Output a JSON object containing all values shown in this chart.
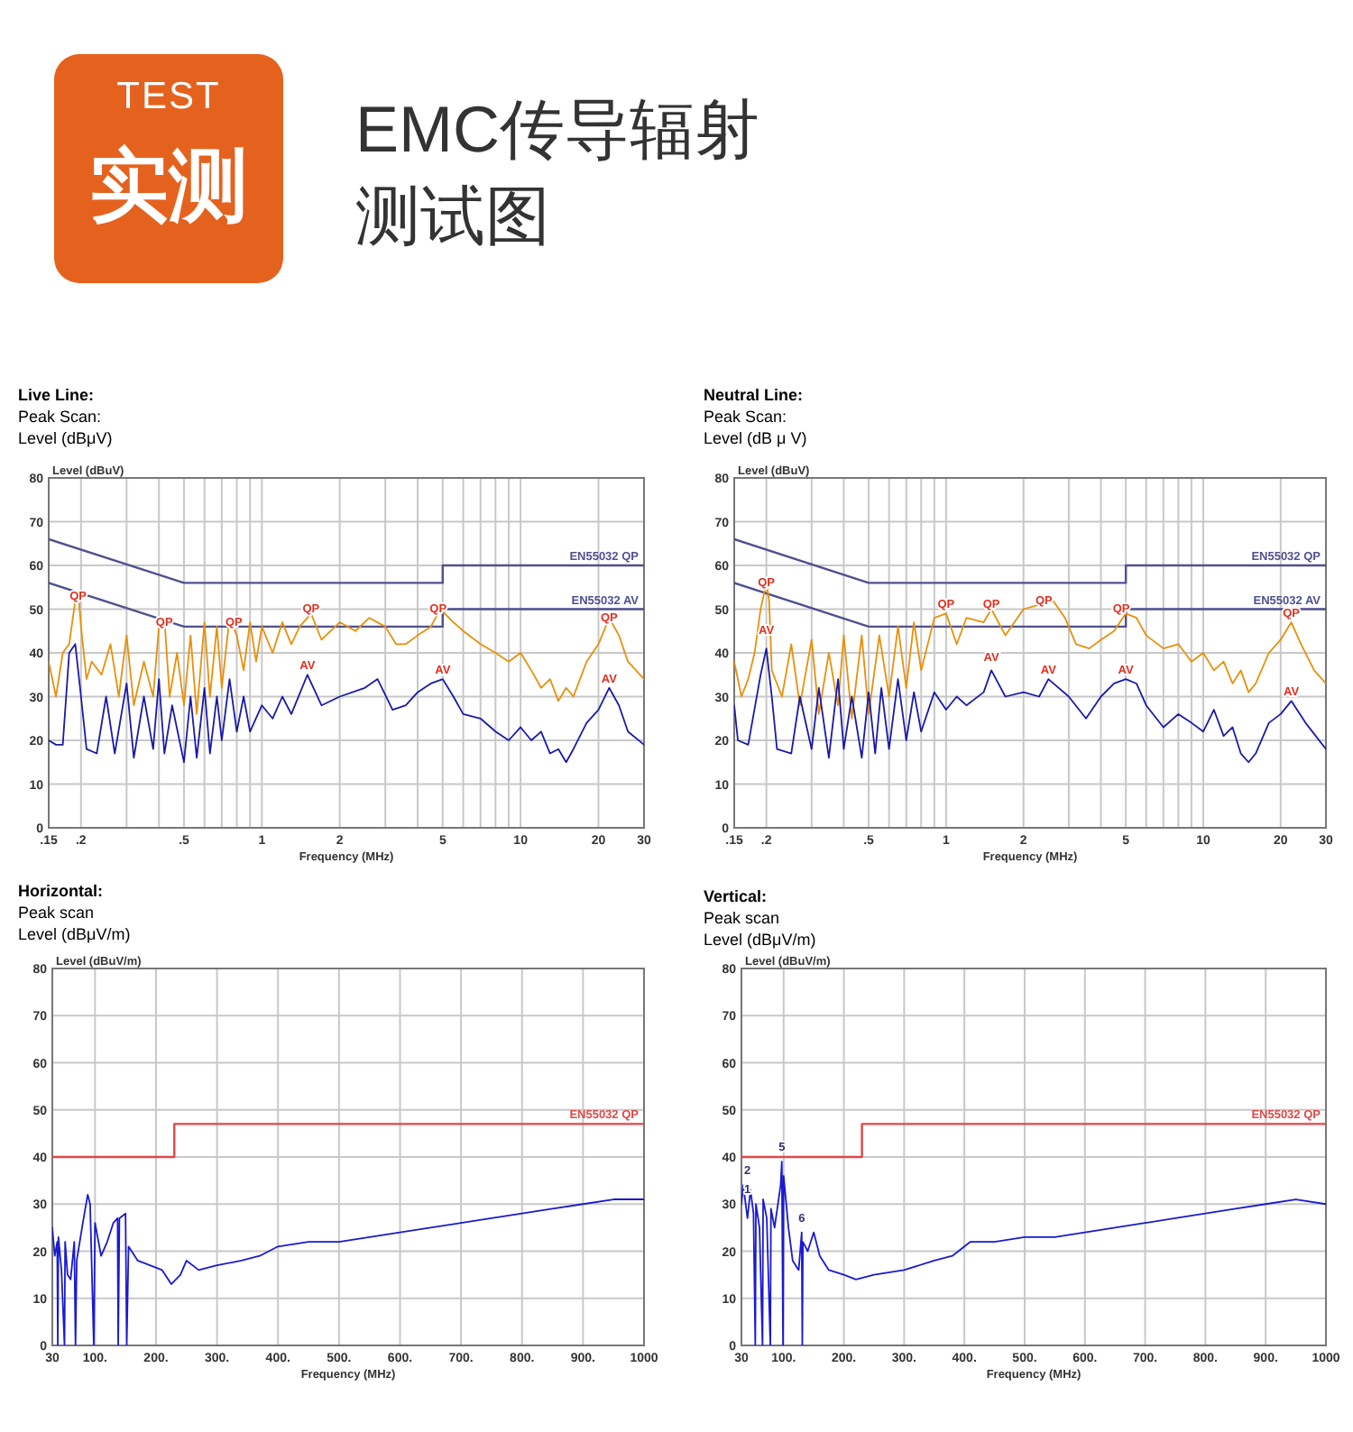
{
  "chart_data": [
    {
      "type": "other",
      "title": "EMC传导辐射测试图",
      "annotations": [
        "TEST",
        "实测"
      ]
    },
    {
      "type": "line",
      "title": "Live Line:",
      "subtitle": "Peak Scan:",
      "ylabel": "Level (dBuV)",
      "xlabel": "Frequency (MHz)",
      "log": "x",
      "grid": true,
      "xlim": [
        0.15,
        30
      ],
      "ylim": [
        0,
        80
      ],
      "xticks": [
        {
          "value": 0.15,
          "label": ".15"
        },
        {
          "value": 0.2,
          "label": ".2"
        },
        {
          "value": 0.3,
          "label": null
        },
        {
          "value": 0.4,
          "label": null
        },
        {
          "value": 0.5,
          "label": ".5"
        },
        {
          "value": 0.6,
          "label": null
        },
        {
          "value": 0.7,
          "label": null
        },
        {
          "value": 0.8,
          "label": null
        },
        {
          "value": 0.9,
          "label": null
        },
        1,
        2,
        {
          "value": 3,
          "label": null
        },
        {
          "value": 4,
          "label": null
        },
        5,
        {
          "value": 6,
          "label": null
        },
        {
          "value": 7,
          "label": null
        },
        {
          "value": 8,
          "label": null
        },
        {
          "value": 9,
          "label": null
        },
        10,
        20,
        30
      ],
      "yticks": [
        0,
        10,
        20,
        30,
        40,
        50,
        60,
        70,
        80
      ],
      "annotations": [
        "Level (dBμV)",
        {
          "text": "QP",
          "x": 0.195,
          "y": 51
        },
        {
          "text": "QP",
          "x": 0.42,
          "y": 45
        },
        {
          "text": "QP",
          "x": 0.78,
          "y": 45
        },
        {
          "text": "QP",
          "x": 1.55,
          "y": 48
        },
        {
          "text": "QP",
          "x": 4.8,
          "y": 48
        },
        {
          "text": "QP",
          "x": 22,
          "y": 46
        },
        {
          "text": "AV",
          "x": 1.5,
          "y": 35
        },
        {
          "text": "AV",
          "x": 5.0,
          "y": 34
        },
        {
          "text": "AV",
          "x": 22,
          "y": 32
        }
      ],
      "series": [
        {
          "type": "line",
          "name": "EN55032 QP",
          "color": "#505090",
          "x": [
            0.15,
            0.5,
            5,
            5,
            30
          ],
          "values": [
            66,
            56,
            56,
            60,
            60
          ]
        },
        {
          "type": "line",
          "name": "EN55032 AV",
          "color": "#505090",
          "x": [
            0.15,
            0.5,
            5,
            5,
            30
          ],
          "values": [
            56,
            46,
            46,
            50,
            50
          ]
        },
        {
          "type": "line",
          "color": "#e8900a",
          "x": [
            0.15,
            0.16,
            0.17,
            0.18,
            0.19,
            0.195,
            0.2,
            0.21,
            0.22,
            0.24,
            0.26,
            0.28,
            0.3,
            0.32,
            0.35,
            0.38,
            0.4,
            0.42,
            0.44,
            0.47,
            0.5,
            0.53,
            0.56,
            0.6,
            0.63,
            0.67,
            0.7,
            0.75,
            0.8,
            0.85,
            0.9,
            0.95,
            1.0,
            1.1,
            1.2,
            1.3,
            1.4,
            1.55,
            1.7,
            2.0,
            2.3,
            2.6,
            3.0,
            3.3,
            3.6,
            4.0,
            4.5,
            4.9,
            5.5,
            6,
            7,
            8,
            9,
            10,
            11,
            12,
            13,
            14,
            15,
            16,
            18,
            20,
            22,
            24,
            26,
            30
          ],
          "values": [
            38,
            30,
            40,
            42,
            52,
            54,
            46,
            34,
            38,
            35,
            42,
            30,
            44,
            28,
            38,
            30,
            46,
            48,
            30,
            40,
            28,
            44,
            26,
            47,
            30,
            46,
            32,
            48,
            44,
            36,
            47,
            38,
            46,
            40,
            47,
            42,
            46,
            49,
            43,
            47,
            45,
            48,
            46,
            42,
            42,
            44,
            46,
            50,
            47,
            45,
            42,
            40,
            38,
            40,
            36,
            32,
            34,
            29,
            32,
            30,
            38,
            42,
            48,
            44,
            38,
            34
          ]
        },
        {
          "type": "line",
          "color": "#1a1aa8",
          "x": [
            0.15,
            0.16,
            0.17,
            0.18,
            0.19,
            0.2,
            0.21,
            0.23,
            0.25,
            0.27,
            0.3,
            0.32,
            0.35,
            0.38,
            0.4,
            0.42,
            0.45,
            0.5,
            0.53,
            0.56,
            0.6,
            0.63,
            0.67,
            0.7,
            0.75,
            0.8,
            0.85,
            0.9,
            1.0,
            1.1,
            1.2,
            1.3,
            1.5,
            1.7,
            2.0,
            2.5,
            2.8,
            3.2,
            3.6,
            4.0,
            4.5,
            5.0,
            5.5,
            6,
            7,
            8,
            9,
            10,
            11,
            12,
            13,
            14,
            15,
            16,
            18,
            20,
            22,
            24,
            26,
            30
          ],
          "values": [
            20,
            19,
            19,
            40,
            42,
            30,
            18,
            17,
            30,
            17,
            33,
            16,
            30,
            18,
            34,
            17,
            28,
            15,
            30,
            16,
            32,
            17,
            30,
            20,
            34,
            22,
            30,
            22,
            28,
            25,
            30,
            26,
            35,
            28,
            30,
            32,
            34,
            27,
            28,
            31,
            33,
            34,
            30,
            26,
            25,
            22,
            20,
            23,
            20,
            22,
            17,
            18,
            15,
            18,
            24,
            27,
            32,
            28,
            22,
            19
          ]
        }
      ]
    },
    {
      "type": "line",
      "title": "Neutral Line:",
      "subtitle": "Peak Scan:",
      "ylabel": "Level (dBuV)",
      "xlabel": "Frequency (MHz)",
      "log": "x",
      "grid": true,
      "xlim": [
        0.15,
        30
      ],
      "ylim": [
        0,
        80
      ],
      "xticks": [
        {
          "value": 0.15,
          "label": ".15"
        },
        {
          "value": 0.2,
          "label": ".2"
        },
        {
          "value": 0.3,
          "label": null
        },
        {
          "value": 0.4,
          "label": null
        },
        {
          "value": 0.5,
          "label": ".5"
        },
        {
          "value": 0.6,
          "label": null
        },
        {
          "value": 0.7,
          "label": null
        },
        {
          "value": 0.8,
          "label": null
        },
        {
          "value": 0.9,
          "label": null
        },
        1,
        2,
        {
          "value": 3,
          "label": null
        },
        {
          "value": 4,
          "label": null
        },
        5,
        {
          "value": 6,
          "label": null
        },
        {
          "value": 7,
          "label": null
        },
        {
          "value": 8,
          "label": null
        },
        {
          "value": 9,
          "label": null
        },
        10,
        20,
        30
      ],
      "yticks": [
        0,
        10,
        20,
        30,
        40,
        50,
        60,
        70,
        80
      ],
      "annotations": [
        "Level (dB μ V)",
        {
          "text": "QP",
          "x": 0.2,
          "y": 54
        },
        {
          "text": "QP",
          "x": 1.0,
          "y": 49
        },
        {
          "text": "QP",
          "x": 1.5,
          "y": 49
        },
        {
          "text": "QP",
          "x": 2.4,
          "y": 50
        },
        {
          "text": "QP",
          "x": 4.8,
          "y": 48
        },
        {
          "text": "QP",
          "x": 22,
          "y": 47
        },
        {
          "text": "AV",
          "x": 0.2,
          "y": 43
        },
        {
          "text": "AV",
          "x": 1.5,
          "y": 37
        },
        {
          "text": "AV",
          "x": 2.5,
          "y": 34
        },
        {
          "text": "AV",
          "x": 5.0,
          "y": 34
        },
        {
          "text": "AV",
          "x": 22,
          "y": 29
        }
      ],
      "series": [
        {
          "type": "line",
          "name": "EN55032 QP",
          "color": "#505090",
          "x": [
            0.15,
            0.5,
            5,
            5,
            30
          ],
          "values": [
            66,
            56,
            56,
            60,
            60
          ]
        },
        {
          "type": "line",
          "name": "EN55032 AV",
          "color": "#505090",
          "x": [
            0.15,
            0.5,
            5,
            5,
            30
          ],
          "values": [
            56,
            46,
            46,
            50,
            50
          ]
        },
        {
          "type": "line",
          "color": "#e8900a",
          "x": [
            0.15,
            0.16,
            0.17,
            0.18,
            0.19,
            0.2,
            0.205,
            0.21,
            0.23,
            0.25,
            0.27,
            0.3,
            0.32,
            0.35,
            0.38,
            0.4,
            0.43,
            0.47,
            0.5,
            0.55,
            0.6,
            0.65,
            0.7,
            0.75,
            0.8,
            0.9,
            1.0,
            1.1,
            1.2,
            1.4,
            1.5,
            1.7,
            2.0,
            2.3,
            2.6,
            2.9,
            3.2,
            3.6,
            4.0,
            4.5,
            5.0,
            5.5,
            6,
            7,
            8,
            9,
            10,
            11,
            12,
            13,
            14,
            15,
            16,
            18,
            20,
            22,
            24,
            27,
            30
          ],
          "values": [
            38,
            30,
            34,
            40,
            50,
            56,
            52,
            36,
            30,
            42,
            28,
            43,
            26,
            40,
            28,
            44,
            25,
            44,
            26,
            44,
            30,
            46,
            32,
            47,
            36,
            48,
            49,
            42,
            48,
            47,
            50,
            44,
            50,
            51,
            52,
            48,
            42,
            41,
            43,
            45,
            49,
            48,
            44,
            41,
            42,
            38,
            40,
            36,
            38,
            33,
            36,
            31,
            33,
            40,
            43,
            47,
            42,
            36,
            33
          ]
        },
        {
          "type": "line",
          "color": "#1a1aa8",
          "x": [
            0.15,
            0.155,
            0.17,
            0.19,
            0.2,
            0.21,
            0.22,
            0.25,
            0.27,
            0.3,
            0.32,
            0.35,
            0.38,
            0.4,
            0.43,
            0.47,
            0.5,
            0.53,
            0.56,
            0.6,
            0.65,
            0.7,
            0.75,
            0.8,
            0.9,
            1.0,
            1.1,
            1.2,
            1.4,
            1.5,
            1.7,
            2.0,
            2.3,
            2.5,
            3.0,
            3.5,
            4.0,
            4.5,
            5.0,
            5.5,
            6,
            7,
            8,
            9,
            10,
            11,
            12,
            13,
            14,
            15,
            16,
            18,
            20,
            22,
            25,
            30
          ],
          "values": [
            28,
            20,
            19,
            35,
            41,
            30,
            18,
            17,
            30,
            18,
            32,
            16,
            34,
            18,
            30,
            16,
            31,
            17,
            32,
            18,
            34,
            20,
            31,
            22,
            31,
            27,
            30,
            28,
            31,
            36,
            30,
            31,
            30,
            34,
            30,
            25,
            30,
            33,
            34,
            33,
            28,
            23,
            26,
            24,
            22,
            27,
            21,
            23,
            17,
            15,
            17,
            24,
            26,
            29,
            24,
            18
          ]
        }
      ]
    },
    {
      "type": "line",
      "title": "Horizontal:",
      "subtitle": "Peak scan",
      "ylabel": "Level (dBuV/m)",
      "xlabel": "Frequency (MHz)",
      "grid": true,
      "xlim": [
        30,
        1000
      ],
      "ylim": [
        0,
        80
      ],
      "xticks": [
        30,
        {
          "value": 100,
          "label": "100."
        },
        {
          "value": 200,
          "label": "200."
        },
        {
          "value": 300,
          "label": "300."
        },
        {
          "value": 400,
          "label": "400."
        },
        {
          "value": 500,
          "label": "500."
        },
        {
          "value": 600,
          "label": "600."
        },
        {
          "value": 700,
          "label": "700."
        },
        {
          "value": 800,
          "label": "800."
        },
        {
          "value": 900,
          "label": "900."
        },
        1000
      ],
      "yticks": [
        0,
        10,
        20,
        30,
        40,
        50,
        60,
        70,
        80
      ],
      "annotations": [
        "Level (dBμV/m)"
      ],
      "series": [
        {
          "type": "line",
          "name": "EN55032 QP",
          "color": "#e04848",
          "x": [
            30,
            230,
            230,
            1000
          ],
          "values": [
            40,
            40,
            47,
            47
          ]
        },
        {
          "type": "line",
          "color": "#1a1ad0",
          "x": [
            30,
            34,
            38,
            39,
            40,
            45,
            50,
            51,
            55,
            60,
            66,
            68,
            70,
            80,
            88,
            92,
            98,
            100,
            110,
            120,
            130,
            137,
            138,
            140,
            150,
            152,
            155,
            170,
            190,
            210,
            225,
            240,
            250,
            270,
            300,
            340,
            370,
            400,
            450,
            500,
            550,
            600,
            650,
            700,
            750,
            800,
            850,
            900,
            950,
            1000
          ],
          "values": [
            25,
            19,
            22,
            0,
            23,
            16,
            0,
            22,
            15,
            14,
            22,
            0,
            18,
            26,
            32,
            30,
            0,
            26,
            19,
            22,
            26,
            27,
            0,
            27,
            28,
            0,
            21,
            18,
            17,
            16,
            13,
            15,
            18,
            16,
            17,
            18,
            19,
            21,
            22,
            22,
            23,
            24,
            25,
            26,
            27,
            28,
            29,
            30,
            31,
            31
          ]
        }
      ]
    },
    {
      "type": "line",
      "title": "Vertical:",
      "subtitle": "Peak scan",
      "ylabel": "Level (dBuV/m)",
      "xlabel": "Frequency (MHz)",
      "grid": true,
      "xlim": [
        30,
        1000
      ],
      "ylim": [
        0,
        80
      ],
      "xticks": [
        30,
        {
          "value": 100,
          "label": "100."
        },
        {
          "value": 200,
          "label": "200."
        },
        {
          "value": 300,
          "label": "300."
        },
        {
          "value": 400,
          "label": "400."
        },
        {
          "value": 500,
          "label": "500."
        },
        {
          "value": 600,
          "label": "600."
        },
        {
          "value": 700,
          "label": "700."
        },
        {
          "value": 800,
          "label": "800."
        },
        {
          "value": 900,
          "label": "900."
        },
        1000
      ],
      "yticks": [
        0,
        10,
        20,
        30,
        40,
        50,
        60,
        70,
        80
      ],
      "annotations": [
        "Level (dBμV/m)",
        {
          "text": "1",
          "x": 30,
          "y": 30
        },
        {
          "text": "2",
          "x": 33,
          "y": 34
        },
        {
          "text": "5",
          "x": 97,
          "y": 39
        },
        {
          "text": "6",
          "x": 130,
          "y": 24
        }
      ],
      "series": [
        {
          "type": "line",
          "name": "EN55032 QP",
          "color": "#e04848",
          "x": [
            30,
            230,
            230,
            1000
          ],
          "values": [
            40,
            40,
            47,
            47
          ]
        },
        {
          "type": "line",
          "color": "#1a1ad0",
          "x": [
            30,
            33,
            40,
            45,
            50,
            53,
            54,
            60,
            65,
            66,
            72,
            78,
            79,
            85,
            95,
            97,
            99,
            100,
            108,
            115,
            125,
            130,
            131,
            132,
            140,
            150,
            160,
            175,
            200,
            220,
            250,
            300,
            350,
            380,
            410,
            450,
            500,
            550,
            600,
            650,
            700,
            750,
            800,
            850,
            900,
            950,
            1000
          ],
          "values": [
            30,
            34,
            27,
            33,
            28,
            0,
            30,
            25,
            0,
            31,
            27,
            0,
            29,
            25,
            34,
            39,
            0,
            36,
            25,
            18,
            16,
            24,
            0,
            22,
            20,
            24,
            19,
            16,
            15,
            14,
            15,
            16,
            18,
            19,
            22,
            22,
            23,
            23,
            24,
            25,
            26,
            27,
            28,
            29,
            30,
            31,
            30
          ]
        }
      ]
    }
  ]
}
